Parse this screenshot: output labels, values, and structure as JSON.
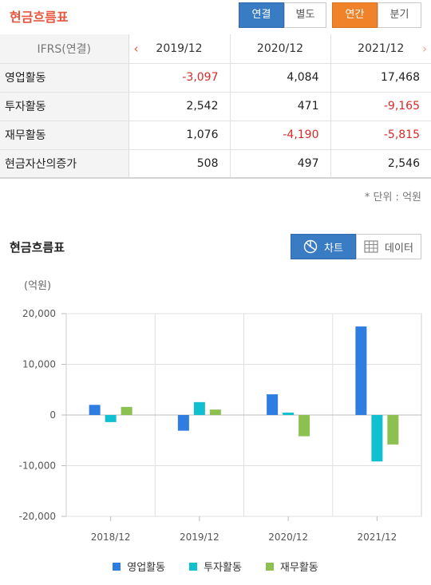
{
  "header": {
    "title": "현금흐름표",
    "consolidation_tabs": [
      "연결",
      "별도"
    ],
    "period_tabs": [
      "연간",
      "분기"
    ]
  },
  "table": {
    "head_label": "IFRS(연결)",
    "columns": [
      "2019/12",
      "2020/12",
      "2021/12"
    ],
    "rows": [
      {
        "label": "영업활동",
        "values": [
          "-3,097",
          "4,084",
          "17,468"
        ]
      },
      {
        "label": "투자활동",
        "values": [
          "2,542",
          "471",
          "-9,165"
        ]
      },
      {
        "label": "재무활동",
        "values": [
          "1,076",
          "-4,190",
          "-5,815"
        ]
      },
      {
        "label": "현금자산의증가",
        "values": [
          "508",
          "497",
          "2,546"
        ]
      }
    ],
    "unit_note": "* 단위 : 억원"
  },
  "chart_section": {
    "title": "현금흐름표",
    "chart_button": "차트",
    "data_button": "데이터",
    "y_unit": "(억원)"
  },
  "colors": {
    "accent": "#e8553e",
    "selected_blue": "#3a7cc4",
    "selected_orange": "#f0832a",
    "negative": "#d62a2a"
  },
  "chart_data": {
    "type": "bar",
    "categories": [
      "2018/12",
      "2019/12",
      "2020/12",
      "2021/12"
    ],
    "series": [
      {
        "name": "영업활동",
        "color": "#2f7de1",
        "values": [
          2000,
          -3097,
          4084,
          17468
        ]
      },
      {
        "name": "투자활동",
        "color": "#11c0cf",
        "values": [
          -1400,
          2542,
          471,
          -9165
        ]
      },
      {
        "name": "재무활동",
        "color": "#8cc152",
        "values": [
          1600,
          1076,
          -4190,
          -5815
        ]
      }
    ],
    "ylim": [
      -20000,
      20000
    ],
    "yticks": [
      "20,000",
      "10,000",
      "0",
      "-10,000",
      "-20,000"
    ],
    "ytick_values": [
      20000,
      10000,
      0,
      -10000,
      -20000
    ],
    "grid": true,
    "legend": "bottom"
  }
}
